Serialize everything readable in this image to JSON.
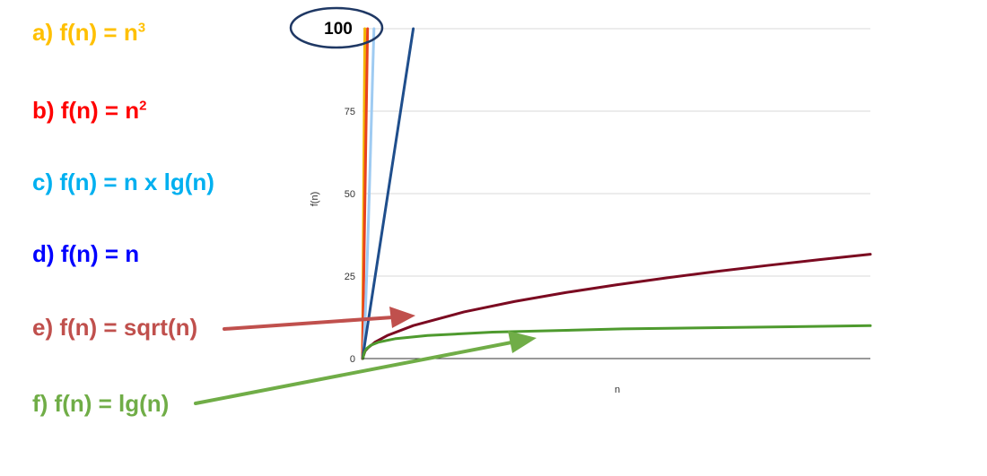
{
  "labels": [
    {
      "prefix": "a) f(n) = n",
      "sup": "3",
      "color": "#FFC000"
    },
    {
      "prefix": "b) f(n) = n",
      "sup": "2",
      "color": "#FF0000"
    },
    {
      "prefix": "c) f(n) = n x lg(n)",
      "sup": "",
      "color": "#00B0F0"
    },
    {
      "prefix": "d) f(n) = n",
      "sup": "",
      "color": "#0000FF"
    },
    {
      "prefix": "e) f(n) = sqrt(n)",
      "sup": "",
      "color": "#C0504D"
    },
    {
      "prefix": "f) f(n) = lg(n)",
      "sup": "",
      "color": "#70AD47"
    }
  ],
  "highlight_label": "100",
  "chart_data": {
    "type": "line",
    "xlabel": "n",
    "ylabel": "f(n)",
    "ylim": [
      0,
      100
    ],
    "xlim": [
      0,
      1000
    ],
    "yticks": [
      "0",
      "25",
      "50",
      "75",
      "100"
    ],
    "grid": true,
    "series": [
      {
        "key": "n3",
        "color": "#F4B400",
        "x": [
          0,
          4.64
        ],
        "y": [
          0,
          100
        ]
      },
      {
        "key": "n2",
        "color": "#E8431F",
        "x": [
          0,
          10
        ],
        "y": [
          0,
          100
        ]
      },
      {
        "key": "nlgn",
        "color": "#9FCBF2",
        "x": [
          0,
          2,
          4,
          6,
          8,
          10,
          12,
          14.3,
          16,
          18,
          20,
          22.6
        ],
        "y": [
          0,
          2,
          8,
          15.5,
          24,
          33.2,
          43,
          54.9,
          64,
          75.1,
          86.4,
          100
        ]
      },
      {
        "key": "n",
        "color": "#1F4E8C",
        "x": [
          0,
          100
        ],
        "y": [
          0,
          100
        ]
      },
      {
        "key": "sqrt",
        "color": "#7B0A21",
        "x": [
          0,
          5,
          10,
          25,
          50,
          100,
          200,
          300,
          400,
          500,
          600,
          700,
          800,
          900,
          1000
        ],
        "y": [
          0,
          2.24,
          3.16,
          5,
          7.07,
          10,
          14.14,
          17.32,
          20,
          22.36,
          24.49,
          26.46,
          28.28,
          30,
          31.62
        ]
      },
      {
        "key": "lg",
        "color": "#4E9A2E",
        "x": [
          1,
          2,
          4,
          8,
          16,
          32,
          64,
          128,
          256,
          512,
          1000
        ],
        "y": [
          0,
          1,
          2,
          3,
          4,
          5,
          6,
          7,
          8,
          9,
          9.97
        ]
      }
    ]
  },
  "arrows": [
    {
      "key": "sqrt-arrow",
      "color": "#C0504D"
    },
    {
      "key": "lg-arrow",
      "color": "#70AD47"
    }
  ]
}
